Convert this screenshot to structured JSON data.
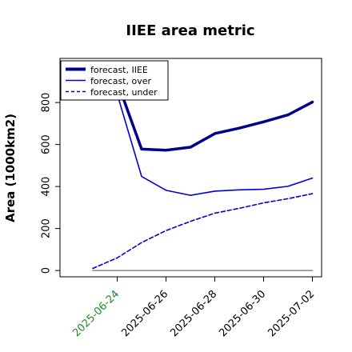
{
  "chart_data": {
    "type": "line",
    "title": "IIEE area metric",
    "xlabel": "",
    "ylabel": "Area (1000km2)",
    "x": [
      "2025-06-23",
      "2025-06-24",
      "2025-06-25",
      "2025-06-26",
      "2025-06-27",
      "2025-06-28",
      "2025-06-29",
      "2025-06-30",
      "2025-07-01",
      "2025-07-02"
    ],
    "xtick_labels": [
      "2025-06-24",
      "2025-06-26",
      "2025-06-28",
      "2025-06-30",
      "2025-07-02"
    ],
    "xtick_colors": [
      "#228B22",
      "#000000",
      "#000000",
      "#000000",
      "#000000"
    ],
    "ylim": [
      -30,
      1010
    ],
    "yticks": [
      0,
      200,
      400,
      600,
      800
    ],
    "grid": false,
    "legend_position": "top-left",
    "series": [
      {
        "name": "forecast, IIEE",
        "color": "#00008B",
        "style": "solid-thick",
        "values": [
          null,
          900,
          578,
          573,
          587,
          652,
          678,
          708,
          741,
          802
        ]
      },
      {
        "name": "forecast, over",
        "color": "#0000DD",
        "style": "solid",
        "values": [
          null,
          840,
          448,
          382,
          358,
          378,
          384,
          387,
          401,
          440
        ]
      },
      {
        "name": "forecast, under",
        "color": "#0000DD",
        "style": "dashed",
        "values": [
          10,
          60,
          133,
          190,
          234,
          273,
          296,
          322,
          342,
          366
        ]
      },
      {
        "name": "",
        "color": "#888888",
        "style": "baseline",
        "values": [
          0,
          0,
          0,
          0,
          0,
          0,
          0,
          0,
          0,
          0
        ]
      }
    ]
  }
}
